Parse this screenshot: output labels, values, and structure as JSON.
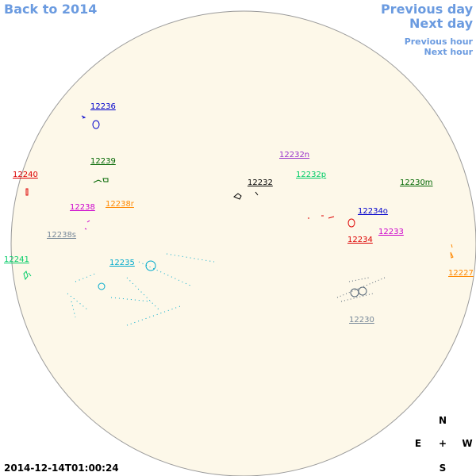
{
  "nav": {
    "back": "Back to 2014",
    "previous_day": "Previous day",
    "next_day": "Next day",
    "previous_hour": "Previous hour",
    "next_hour": "Next hour"
  },
  "regions": [
    "12236",
    "12239",
    "12240",
    "12238",
    "12238r",
    "12238s",
    "12241",
    "12235",
    "12232n",
    "12232p",
    "12232",
    "12230m",
    "12234o",
    "12234",
    "12233",
    "12227",
    "12230"
  ],
  "compass": {
    "north": "N",
    "east": "E",
    "center": "+",
    "west": "W",
    "south": "S"
  },
  "timestamp": "2014-12-14T01:00:24"
}
